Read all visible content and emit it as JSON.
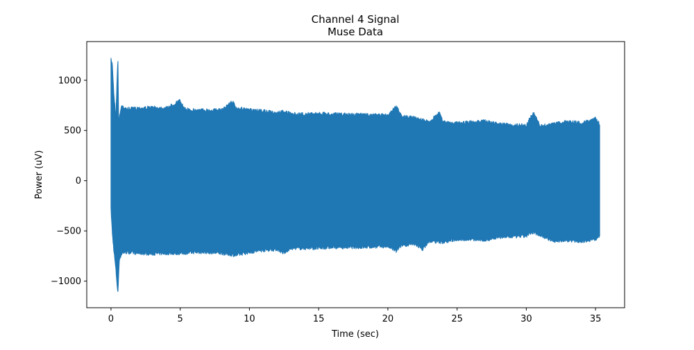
{
  "chart_data": {
    "type": "line",
    "title": "Channel 4 Signal",
    "subtitle": "Muse Data",
    "xlabel": "Time (sec)",
    "ylabel": "Power (uV)",
    "xlim": [
      -1.75,
      37.1
    ],
    "ylim": [
      -1265,
      1385
    ],
    "x_ticks": [
      0,
      5,
      10,
      15,
      20,
      25,
      30,
      35
    ],
    "y_ticks": [
      -1000,
      -500,
      0,
      500,
      1000
    ],
    "x_tick_labels": [
      "0",
      "5",
      "10",
      "15",
      "20",
      "25",
      "30",
      "35"
    ],
    "y_tick_labels": [
      "−1000",
      "−500",
      "0",
      "500",
      "1000"
    ],
    "grid": false,
    "legend": "none",
    "series": [
      {
        "color": "#1f77b4",
        "x_range": [
          0,
          35.3
        ],
        "upper_envelope": [
          [
            0.0,
            1220
          ],
          [
            0.1,
            1180
          ],
          [
            0.2,
            900
          ],
          [
            0.35,
            650
          ],
          [
            0.5,
            1270
          ],
          [
            0.55,
            620
          ],
          [
            0.8,
            780
          ],
          [
            1.0,
            730
          ],
          [
            2,
            740
          ],
          [
            3,
            745
          ],
          [
            4,
            740
          ],
          [
            5,
            815
          ],
          [
            5.3,
            730
          ],
          [
            6,
            720
          ],
          [
            7,
            720
          ],
          [
            8,
            720
          ],
          [
            8.8,
            810
          ],
          [
            9,
            740
          ],
          [
            10,
            720
          ],
          [
            11,
            710
          ],
          [
            12,
            690
          ],
          [
            12.5,
            710
          ],
          [
            13,
            680
          ],
          [
            14,
            680
          ],
          [
            15,
            685
          ],
          [
            16,
            680
          ],
          [
            17,
            675
          ],
          [
            18,
            675
          ],
          [
            19,
            670
          ],
          [
            20,
            670
          ],
          [
            20.6,
            760
          ],
          [
            21,
            660
          ],
          [
            22,
            640
          ],
          [
            23,
            600
          ],
          [
            23.7,
            700
          ],
          [
            24,
            600
          ],
          [
            25,
            590
          ],
          [
            26,
            600
          ],
          [
            27,
            610
          ],
          [
            28,
            580
          ],
          [
            29,
            570
          ],
          [
            30,
            570
          ],
          [
            30.5,
            700
          ],
          [
            31,
            560
          ],
          [
            32,
            580
          ],
          [
            33,
            610
          ],
          [
            34,
            590
          ],
          [
            35,
            640
          ],
          [
            35.3,
            580
          ]
        ],
        "lower_envelope": [
          [
            0.0,
            -300
          ],
          [
            0.1,
            -550
          ],
          [
            0.2,
            -700
          ],
          [
            0.35,
            -900
          ],
          [
            0.5,
            -1150
          ],
          [
            0.6,
            -800
          ],
          [
            0.8,
            -740
          ],
          [
            1.0,
            -730
          ],
          [
            2,
            -740
          ],
          [
            3,
            -745
          ],
          [
            4,
            -740
          ],
          [
            5,
            -740
          ],
          [
            6,
            -730
          ],
          [
            7,
            -730
          ],
          [
            8,
            -740
          ],
          [
            9,
            -760
          ],
          [
            10,
            -730
          ],
          [
            11,
            -710
          ],
          [
            12,
            -700
          ],
          [
            12.5,
            -740
          ],
          [
            13,
            -690
          ],
          [
            14,
            -690
          ],
          [
            15,
            -690
          ],
          [
            16,
            -680
          ],
          [
            17,
            -680
          ],
          [
            18,
            -680
          ],
          [
            19,
            -675
          ],
          [
            20,
            -670
          ],
          [
            20.6,
            -720
          ],
          [
            21,
            -660
          ],
          [
            22,
            -650
          ],
          [
            22.5,
            -700
          ],
          [
            23,
            -620
          ],
          [
            24,
            -630
          ],
          [
            25,
            -600
          ],
          [
            26,
            -600
          ],
          [
            27,
            -610
          ],
          [
            28,
            -580
          ],
          [
            29,
            -575
          ],
          [
            30,
            -570
          ],
          [
            30.5,
            -530
          ],
          [
            31,
            -560
          ],
          [
            32,
            -620
          ],
          [
            33,
            -610
          ],
          [
            34,
            -620
          ],
          [
            35,
            -600
          ],
          [
            35.3,
            -560
          ]
        ]
      }
    ]
  }
}
